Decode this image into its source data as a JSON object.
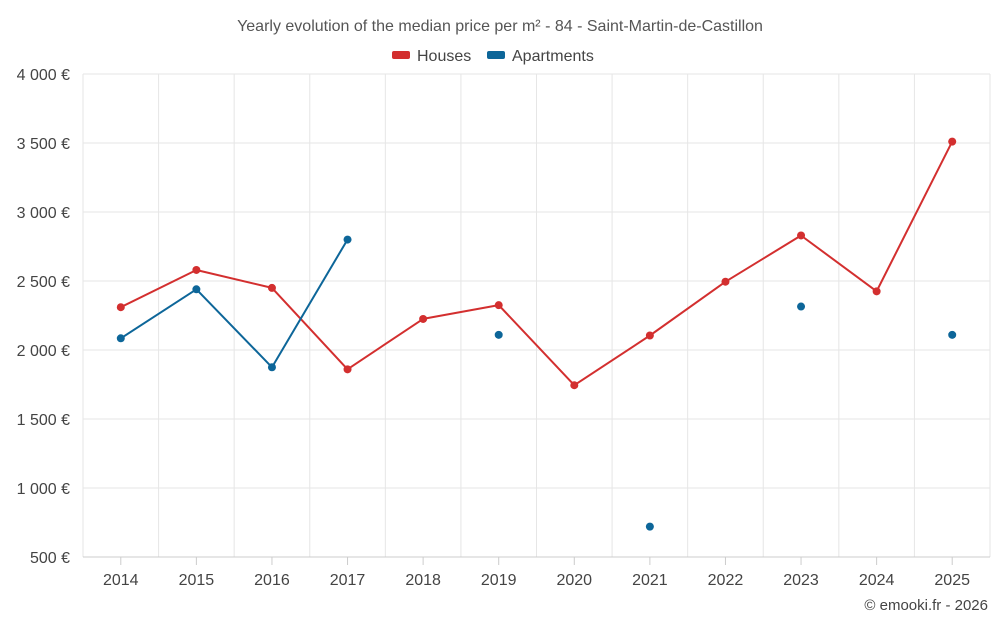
{
  "chart_data": {
    "type": "line",
    "title": "Yearly evolution of the median price per m² - 84 - Saint-Martin-de-Castillon",
    "categories": [
      "2014",
      "2015",
      "2016",
      "2017",
      "2018",
      "2019",
      "2020",
      "2021",
      "2022",
      "2023",
      "2024",
      "2025"
    ],
    "ylim": [
      500,
      4000
    ],
    "yticks": [
      500,
      1000,
      1500,
      2000,
      2500,
      3000,
      3500,
      4000
    ],
    "ytick_labels": [
      "500 €",
      "1 000 €",
      "1 500 €",
      "2 000 €",
      "2 500 €",
      "3 000 €",
      "3 500 €",
      "4 000 €"
    ],
    "grid": true,
    "legend_position": "top-center",
    "series": [
      {
        "name": "Houses",
        "color": "#d32f2f",
        "values": [
          2310,
          2580,
          2450,
          1860,
          2225,
          2325,
          1745,
          2105,
          2495,
          2830,
          2425,
          3510
        ]
      },
      {
        "name": "Apartments",
        "color": "#0d6699",
        "values": [
          2085,
          2440,
          1875,
          2800,
          null,
          2110,
          null,
          720,
          null,
          2315,
          null,
          2110
        ]
      }
    ]
  },
  "credit": "© emooki.fr - 2026"
}
